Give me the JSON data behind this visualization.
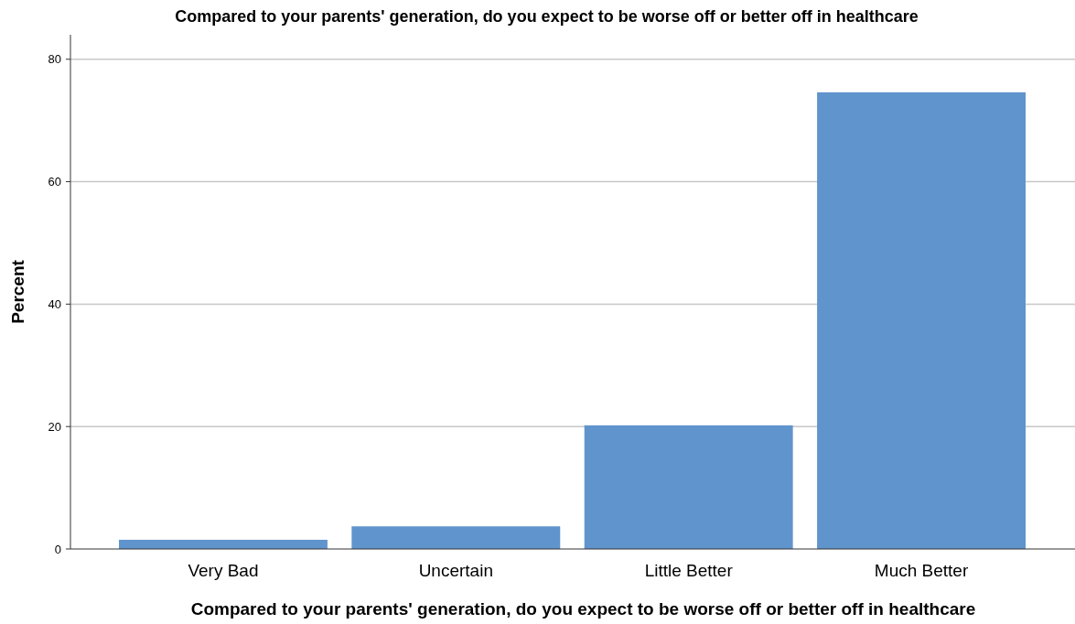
{
  "chart_data": {
    "type": "bar",
    "title": "Compared to your parents' generation, do you expect to be worse off or better off in healthcare",
    "xlabel": "Compared to your parents' generation, do you expect to be worse off or better off in healthcare",
    "ylabel": "Percent",
    "categories": [
      "Very Bad",
      "Uncertain",
      "Little Better",
      "Much Better"
    ],
    "values": [
      1.5,
      3.7,
      20.2,
      74.6
    ],
    "color": "#6094cc",
    "ylim": [
      0,
      84
    ],
    "yticks": [
      0,
      20,
      40,
      60,
      80
    ],
    "grid": "y"
  }
}
